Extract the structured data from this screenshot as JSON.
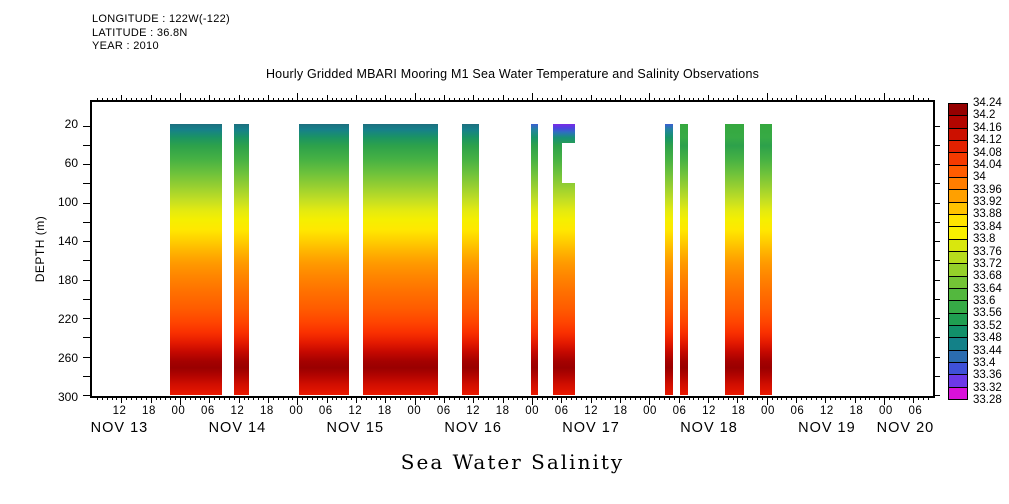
{
  "meta": {
    "lines": [
      "LONGITUDE : 122W(-122)",
      "LATITUDE : 36.8N",
      "YEAR : 2010"
    ]
  },
  "title": "Hourly Gridded MBARI Mooring M1 Sea Water Temperature and Salinity Observations",
  "footer": "Sea Water Salinity",
  "y_axis": {
    "label": "DEPTH (m)",
    "labeled_ticks": [
      20,
      60,
      100,
      140,
      180,
      220,
      260,
      300
    ],
    "all_ticks": [
      20,
      40,
      60,
      80,
      100,
      120,
      140,
      160,
      180,
      200,
      220,
      240,
      260,
      280,
      300
    ]
  },
  "x_axis": {
    "hour_labels": [
      "12",
      "18",
      "00",
      "06",
      "12",
      "18",
      "00",
      "06",
      "12",
      "18",
      "00",
      "06",
      "12",
      "18",
      "00",
      "06",
      "12",
      "18",
      "00",
      "06",
      "12",
      "18",
      "00",
      "06",
      "12",
      "18",
      "00",
      "06"
    ],
    "date_labels": [
      "NOV 13",
      "NOV 14",
      "NOV 15",
      "NOV 16",
      "NOV 17",
      "NOV 18",
      "NOV 19",
      "NOV 20"
    ]
  },
  "colorbar": {
    "labels": [
      "34.24",
      "34.2",
      "34.16",
      "34.12",
      "34.08",
      "34.04",
      "34",
      "33.96",
      "33.92",
      "33.88",
      "33.84",
      "33.8",
      "33.76",
      "33.72",
      "33.68",
      "33.64",
      "33.6",
      "33.56",
      "33.52",
      "33.48",
      "33.44",
      "33.4",
      "33.36",
      "33.32",
      "33.28"
    ],
    "cell_colors_top_to_bottom": [
      "#950000",
      "#b30500",
      "#cc1000",
      "#e32100",
      "#f53a00",
      "#ff5c00",
      "#ff7e00",
      "#ffa000",
      "#ffc200",
      "#ffe400",
      "#f8f000",
      "#d9e70d",
      "#b7dc1c",
      "#95d02a",
      "#74c436",
      "#53b83e",
      "#36ab46",
      "#1f9e51",
      "#11906a",
      "#138188",
      "#2b6cb0",
      "#3f51d8",
      "#6c38e8",
      "#d911d9"
    ]
  },
  "chart_data": {
    "type": "heatmap",
    "title": "Hourly Gridded MBARI Mooring M1 Sea Water Temperature and Salinity Observations",
    "variable": "Sea Water Salinity",
    "ylabel": "DEPTH (m)",
    "depth_range_m": [
      20,
      300
    ],
    "salinity_scale": {
      "min": 33.28,
      "max": 34.24,
      "step": 0.04
    },
    "time_axis": {
      "start": "NOV 13 06:00 2010",
      "end": "NOV 20 10:00 2010",
      "total_hours": 172,
      "hour_label_step": 6,
      "first_hour_label_offset": 6
    },
    "depth_profile_typical": [
      {
        "depth_m": 20,
        "salinity": 33.56
      },
      {
        "depth_m": 40,
        "salinity": 33.62
      },
      {
        "depth_m": 60,
        "salinity": 33.68
      },
      {
        "depth_m": 80,
        "salinity": 33.74
      },
      {
        "depth_m": 100,
        "salinity": 33.84
      },
      {
        "depth_m": 120,
        "salinity": 33.9
      },
      {
        "depth_m": 140,
        "salinity": 33.94
      },
      {
        "depth_m": 160,
        "salinity": 33.97
      },
      {
        "depth_m": 180,
        "salinity": 34.0
      },
      {
        "depth_m": 200,
        "salinity": 34.03
      },
      {
        "depth_m": 220,
        "salinity": 34.07
      },
      {
        "depth_m": 240,
        "salinity": 34.13
      },
      {
        "depth_m": 260,
        "salinity": 34.21
      },
      {
        "depth_m": 280,
        "salinity": 34.17
      },
      {
        "depth_m": 300,
        "salinity": 34.15
      }
    ],
    "bands": [
      {
        "from": "NOV 13 22:00",
        "to": "NOV 14 08:30",
        "from_h": 15.9,
        "to_h": 26.5,
        "variant": "teal"
      },
      {
        "from": "NOV 14 11:00",
        "to": "NOV 14 14:00",
        "from_h": 29.1,
        "to_h": 32.2,
        "variant": "teal"
      },
      {
        "from": "NOV 15 00:30",
        "to": "NOV 15 10:30",
        "from_h": 42.3,
        "to_h": 52.5,
        "variant": "teal"
      },
      {
        "from": "NOV 15 13:30",
        "to": "NOV 16 05:00",
        "from_h": 55.4,
        "to_h": 70.8,
        "variant": "teal"
      },
      {
        "from": "NOV 16 09:45",
        "to": "NOV 16 13:15",
        "from_h": 75.7,
        "to_h": 79.2,
        "variant": "teal"
      },
      {
        "from": "NOV 16 23:45",
        "to": "NOV 17 01:15",
        "from_h": 89.8,
        "to_h": 91.2,
        "variant": "blue"
      },
      {
        "from": "NOV 17 04:15",
        "to": "NOV 17 08:45",
        "from_h": 94.2,
        "to_h": 98.7,
        "variant": "purple",
        "notch": {
          "left_pct": 41,
          "top_pct": 7,
          "width_pct": 59,
          "height_pct": 15
        }
      },
      {
        "from": "NOV 18 03:15",
        "to": "NOV 18 05:00",
        "from_h": 117.2,
        "to_h": 118.9,
        "variant": "blue"
      },
      {
        "from": "NOV 18 06:15",
        "to": "NOV 18 08:00",
        "from_h": 120.3,
        "to_h": 121.9,
        "variant": "green"
      },
      {
        "from": "NOV 18 15:30",
        "to": "NOV 18 19:15",
        "from_h": 129.4,
        "to_h": 133.3,
        "variant": "green"
      },
      {
        "from": "NOV 18 22:30",
        "to": "NOV 19 01:00",
        "from_h": 136.6,
        "to_h": 139.0,
        "variant": "green"
      }
    ],
    "gradients": {
      "base_stops": [
        [
          8,
          "#2da14b"
        ],
        [
          13,
          "#46b144"
        ],
        [
          18,
          "#6cc13c"
        ],
        [
          23,
          "#97cf31"
        ],
        [
          28,
          "#c2de24"
        ],
        [
          32,
          "#e4ea10"
        ],
        [
          35.5,
          "#f6ef00"
        ],
        [
          39,
          "#ffe800"
        ],
        [
          43,
          "#ffcf00"
        ],
        [
          47,
          "#ffb400"
        ],
        [
          51,
          "#ff9c00"
        ],
        [
          56,
          "#ff8600"
        ],
        [
          62,
          "#ff7000"
        ],
        [
          68,
          "#ff5c00"
        ],
        [
          73,
          "#ff4500"
        ],
        [
          77,
          "#f93000"
        ],
        [
          80.5,
          "#e51b00"
        ],
        [
          84,
          "#c60900"
        ],
        [
          87.5,
          "#a50100"
        ],
        [
          90,
          "#9a0000"
        ],
        [
          93,
          "#b40400"
        ],
        [
          96,
          "#d00e00"
        ],
        [
          100,
          "#ea1800"
        ]
      ],
      "top_stops": {
        "teal": [
          [
            0,
            "#1d6f7e"
          ],
          [
            2,
            "#16808b"
          ],
          [
            5,
            "#1b9463"
          ]
        ],
        "green": [
          [
            0,
            "#35a83e"
          ],
          [
            5,
            "#37aa45"
          ]
        ],
        "blue": [
          [
            0,
            "#3a5fd0"
          ],
          [
            2,
            "#2383a0"
          ],
          [
            5,
            "#169468"
          ]
        ],
        "purple": [
          [
            0,
            "#7a2be6"
          ],
          [
            1.5,
            "#4b43e0"
          ],
          [
            3,
            "#2e6fc0"
          ],
          [
            5,
            "#179077"
          ]
        ]
      }
    }
  }
}
